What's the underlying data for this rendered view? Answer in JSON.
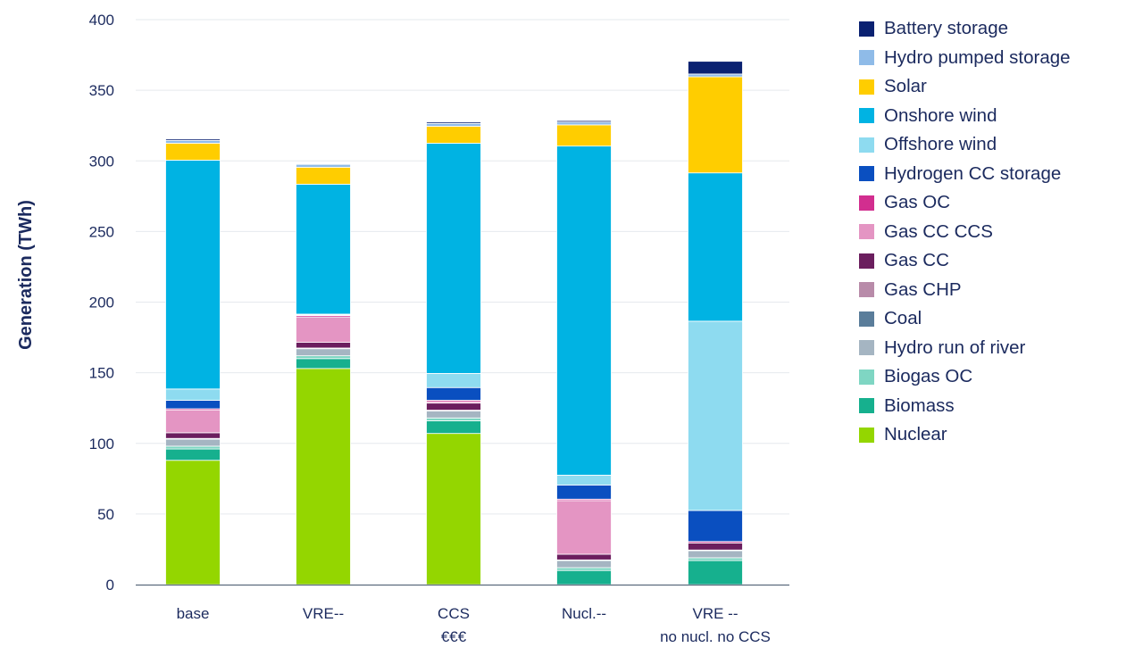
{
  "chart_data": {
    "type": "bar",
    "stacked": true,
    "title": "",
    "xlabel": "",
    "ylabel": "Generation (TWh)",
    "ylim": [
      0,
      400
    ],
    "yticks": [
      0,
      50,
      100,
      150,
      200,
      250,
      300,
      350,
      400
    ],
    "grid": true,
    "legend_position": "right",
    "categories": [
      [
        "base"
      ],
      [
        "VRE--"
      ],
      [
        "CCS",
        "€€€"
      ],
      [
        "Nucl.--"
      ],
      [
        "VRE --",
        "no nucl. no CCS"
      ]
    ],
    "series": [
      {
        "name": "Nuclear",
        "color": "#94d600",
        "values": [
          88,
          153,
          107,
          0,
          0
        ]
      },
      {
        "name": "Biomass",
        "color": "#16b08e",
        "values": [
          8,
          7,
          9,
          10,
          17
        ]
      },
      {
        "name": "Biogas OC",
        "color": "#7fd6c3",
        "values": [
          2,
          2,
          2,
          2,
          2
        ]
      },
      {
        "name": "Hydro run of river",
        "color": "#a5b5c2",
        "values": [
          5,
          5,
          5,
          5,
          5
        ]
      },
      {
        "name": "Coal",
        "color": "#5a7d9a",
        "values": [
          0,
          0,
          0,
          0,
          0
        ]
      },
      {
        "name": "Gas CHP",
        "color": "#b88ba9",
        "values": [
          0.5,
          0.5,
          0.5,
          0.5,
          0.5
        ]
      },
      {
        "name": "Gas CC",
        "color": "#6b1e5e",
        "values": [
          4,
          4,
          5,
          4,
          5
        ]
      },
      {
        "name": "Gas CC CCS",
        "color": "#e495c3",
        "values": [
          16,
          18,
          1,
          38,
          0
        ]
      },
      {
        "name": "Gas OC",
        "color": "#d22e8f",
        "values": [
          1,
          1,
          1,
          1,
          1
        ]
      },
      {
        "name": "Hydrogen CC storage",
        "color": "#0a4fc0",
        "values": [
          6,
          0.5,
          9,
          10,
          22
        ]
      },
      {
        "name": "Offshore wind",
        "color": "#8edbf0",
        "values": [
          8,
          0.5,
          10,
          7,
          134
        ]
      },
      {
        "name": "Onshore wind",
        "color": "#00b3e3",
        "values": [
          162,
          92,
          163,
          233,
          105
        ]
      },
      {
        "name": "Solar",
        "color": "#ffcd00",
        "values": [
          12,
          12,
          12,
          15,
          68
        ]
      },
      {
        "name": "Hydro pumped storage",
        "color": "#8fbbe8",
        "values": [
          2,
          2,
          2,
          2,
          2
        ]
      },
      {
        "name": "Battery storage",
        "color": "#0a2171",
        "values": [
          1,
          0,
          1,
          1,
          9
        ]
      }
    ],
    "legend_order": [
      "Battery storage",
      "Hydro pumped storage",
      "Solar",
      "Onshore wind",
      "Offshore wind",
      "Hydrogen CC storage",
      "Gas OC",
      "Gas CC CCS",
      "Gas CC",
      "Gas CHP",
      "Coal",
      "Hydro run of river",
      "Biogas OC",
      "Biomass",
      "Nuclear"
    ]
  },
  "colors": {
    "text": "#1b2a5e",
    "grid": "#e6e9ee",
    "axis": "#5a6b7d"
  }
}
